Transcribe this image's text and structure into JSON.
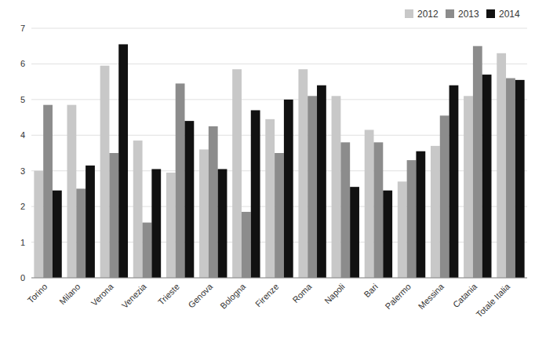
{
  "chart_data": {
    "type": "bar",
    "categories": [
      "Torino",
      "Milano",
      "Verona",
      "Venezia",
      "Trieste",
      "Genova",
      "Bologna",
      "Firenze",
      "Roma",
      "Napoli",
      "Bari",
      "Palermo",
      "Messina",
      "Catania",
      "Totale Italia"
    ],
    "series": [
      {
        "name": "2012",
        "color": "#c8c8c8",
        "values": [
          3.0,
          4.85,
          5.95,
          3.85,
          2.95,
          3.6,
          5.85,
          4.45,
          5.85,
          5.1,
          4.15,
          2.7,
          3.7,
          5.1,
          6.3
        ]
      },
      {
        "name": "2013",
        "color": "#8c8c8c",
        "values": [
          4.85,
          2.5,
          3.5,
          1.55,
          5.45,
          4.25,
          1.85,
          3.5,
          5.1,
          3.8,
          3.8,
          3.3,
          4.55,
          6.5,
          5.6
        ]
      },
      {
        "name": "2014",
        "color": "#111111",
        "values": [
          2.45,
          3.15,
          6.55,
          3.05,
          4.4,
          3.05,
          4.7,
          5.0,
          5.4,
          2.55,
          2.45,
          3.55,
          5.4,
          5.7,
          5.55
        ]
      }
    ],
    "ylim": [
      0,
      7
    ],
    "yticks": [
      0,
      1,
      2,
      3,
      4,
      5,
      6,
      7
    ],
    "grid": true,
    "legend": "upper-right"
  }
}
